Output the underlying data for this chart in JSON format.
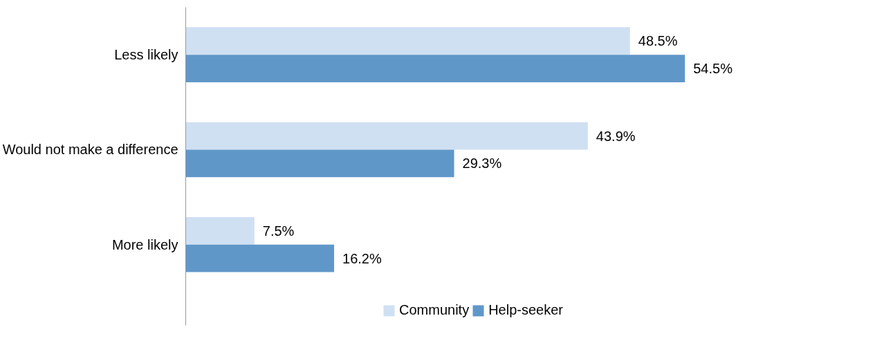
{
  "chart_data": {
    "type": "bar",
    "orientation": "horizontal",
    "categories": [
      "Less likely",
      "Would not make a difference",
      "More likely"
    ],
    "series": [
      {
        "name": "Community",
        "color": "#d0e0f3",
        "values": [
          48.5,
          43.9,
          7.5
        ],
        "value_labels": [
          "48.5%",
          "43.9%",
          "7.5%"
        ]
      },
      {
        "name": "Help-seeker",
        "color": "#6097c9",
        "values": [
          54.5,
          29.3,
          16.2
        ],
        "value_labels": [
          "54.5%",
          "29.3%",
          "16.2%"
        ]
      }
    ],
    "tick_labels": "y",
    "legend": "bottom"
  }
}
